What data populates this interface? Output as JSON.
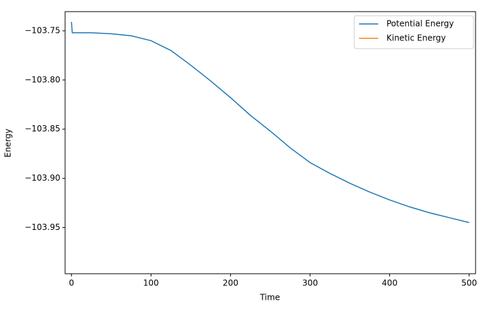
{
  "chart_data": {
    "type": "line",
    "x_label": "Time",
    "y_label": "Energy",
    "x": [
      0,
      1,
      25,
      50,
      75,
      100,
      125,
      150,
      175,
      200,
      225,
      250,
      275,
      300,
      325,
      350,
      375,
      400,
      425,
      450,
      475,
      500
    ],
    "series": [
      {
        "name": "Potential Energy",
        "color": "#1f77b4",
        "values": [
          -103.741,
          -103.752,
          -103.752,
          -103.753,
          -103.755,
          -103.76,
          -103.77,
          -103.785,
          -103.801,
          -103.818,
          -103.836,
          -103.852,
          -103.869,
          -103.884,
          -103.895,
          -103.905,
          -103.914,
          -103.922,
          -103.929,
          -103.935,
          -103.94,
          -103.945
        ]
      },
      {
        "name": "Kinetic Energy",
        "color": "#ff7f0e",
        "values": [
          null,
          null,
          null,
          null,
          null,
          null,
          null,
          null,
          null,
          null,
          null,
          null,
          null,
          null,
          null,
          null,
          null,
          null,
          null,
          null,
          null,
          null
        ]
      }
    ],
    "xlim": [
      -8,
      508
    ],
    "ylim": [
      -103.997,
      -103.7305
    ],
    "xticks": [
      0,
      100,
      200,
      300,
      400,
      500
    ],
    "yticks": [
      {
        "value": -103.95,
        "label": "−103.95"
      },
      {
        "value": -103.9,
        "label": "−103.90"
      },
      {
        "value": -103.85,
        "label": "−103.85"
      },
      {
        "value": -103.8,
        "label": "−103.80"
      },
      {
        "value": -103.75,
        "label": "−103.75"
      }
    ],
    "grid": false,
    "legend": "upper right"
  }
}
